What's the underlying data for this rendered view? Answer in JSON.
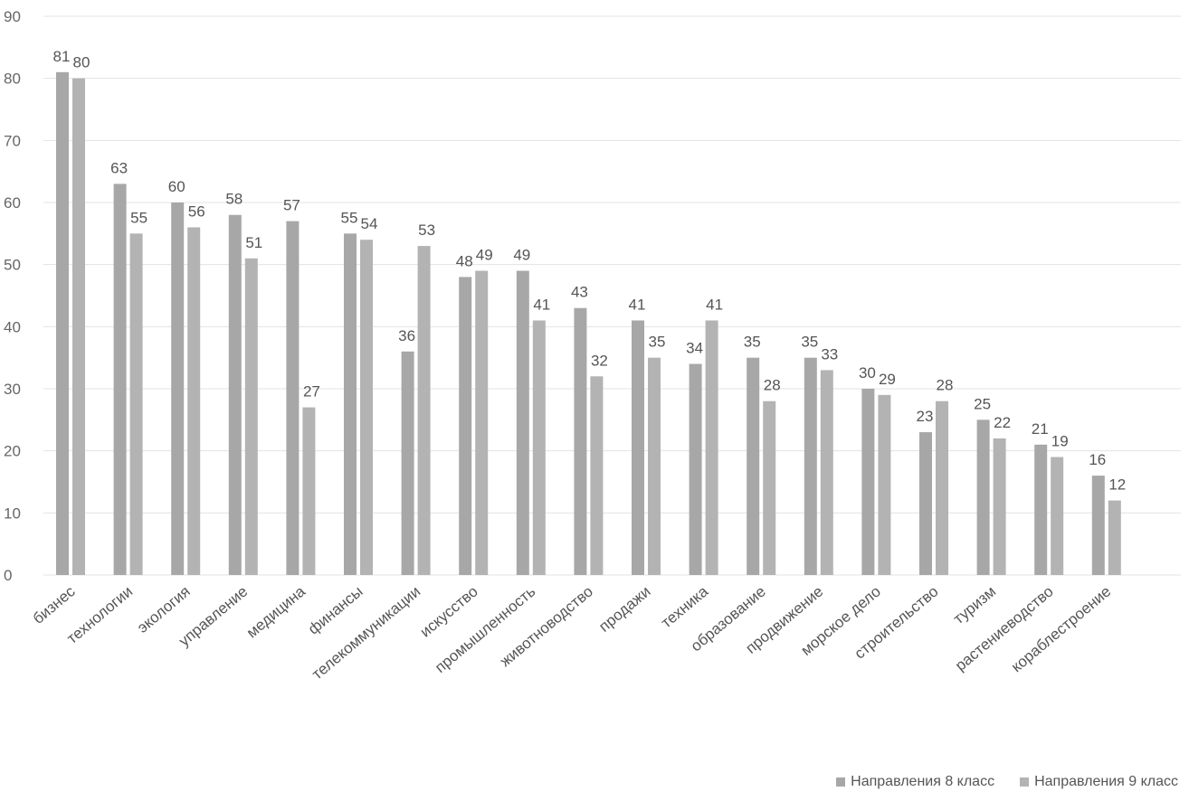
{
  "chart_data": {
    "type": "bar",
    "categories": [
      "бизнес",
      "технологии",
      "экология",
      "управление",
      "медицина",
      "финансы",
      "телекоммуникации",
      "искусство",
      "промышленность",
      "животноводство",
      "продажи",
      "техника",
      "образование",
      "продвижение",
      "морское дело",
      "строительство",
      "туризм",
      "растениеводство",
      "кораблестроение"
    ],
    "series": [
      {
        "name": "Направления 8 класс",
        "color": "#a7a7a7",
        "values": [
          81,
          63,
          60,
          58,
          57,
          55,
          36,
          48,
          49,
          43,
          41,
          34,
          35,
          35,
          30,
          23,
          25,
          21,
          16
        ]
      },
      {
        "name": "Направления 9 класс",
        "color": "#b3b3b3",
        "values": [
          80,
          55,
          56,
          51,
          27,
          54,
          53,
          49,
          41,
          32,
          35,
          41,
          28,
          33,
          29,
          28,
          22,
          19,
          12
        ]
      }
    ],
    "yticks": [
      "0",
      "10",
      "20",
      "30",
      "40",
      "50",
      "60",
      "70",
      "80",
      "90"
    ],
    "ylim": [
      0,
      90
    ],
    "grid": true,
    "legend_position": "bottom-right",
    "title": "",
    "xlabel": "",
    "ylabel": ""
  }
}
